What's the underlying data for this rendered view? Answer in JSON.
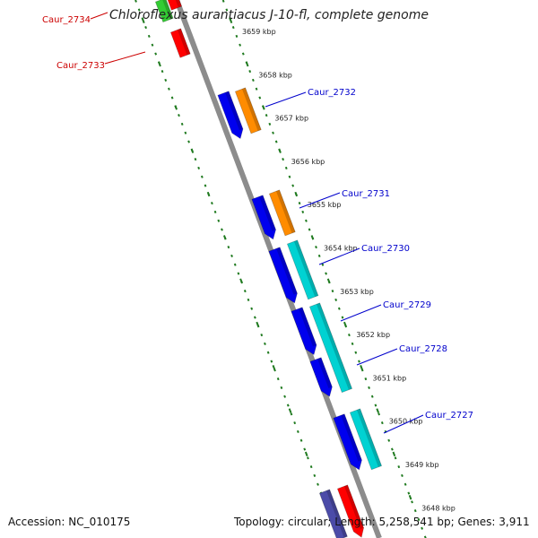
{
  "title": "Chloroflexus aurantiacus J-10-fl, complete genome",
  "footer": {
    "accession": "Accession: NC_010175",
    "topology": "Topology: circular; Length: 5,258,541 bp; Genes: 3,911"
  },
  "colors": {
    "backbone": "#8c8c8c",
    "ruler": "#1f7a1f",
    "label_blue": "#0000cc",
    "label_red": "#cc0000",
    "cds_blue": "#0000ee",
    "cds_orange": "#ff8c00",
    "cds_cyan": "#00d2d2",
    "cds_red": "#ff0000",
    "cds_green": "#33cc33",
    "cds_purple": "#4b4ba8"
  },
  "ticks": [
    {
      "label": "3659 kbp",
      "kbp": 3659
    },
    {
      "label": "3658 kbp",
      "kbp": 3658
    },
    {
      "label": "3657 kbp",
      "kbp": 3657
    },
    {
      "label": "3656 kbp",
      "kbp": 3656
    },
    {
      "label": "3655 kbp",
      "kbp": 3655
    },
    {
      "label": "3654 kbp",
      "kbp": 3654
    },
    {
      "label": "3653 kbp",
      "kbp": 3653
    },
    {
      "label": "3652 kbp",
      "kbp": 3652
    },
    {
      "label": "3651 kbp",
      "kbp": 3651
    },
    {
      "label": "3650 kbp",
      "kbp": 3650
    },
    {
      "label": "3649 kbp",
      "kbp": 3649
    },
    {
      "label": "3648 kbp",
      "kbp": 3648
    }
  ],
  "gene_labels": [
    {
      "name": "Caur_2734",
      "color": "label_red"
    },
    {
      "name": "Caur_2733",
      "color": "label_red"
    },
    {
      "name": "Caur_2732",
      "color": "label_blue"
    },
    {
      "name": "Caur_2731",
      "color": "label_blue"
    },
    {
      "name": "Caur_2730",
      "color": "label_blue"
    },
    {
      "name": "Caur_2729",
      "color": "label_blue"
    },
    {
      "name": "Caur_2728",
      "color": "label_blue"
    },
    {
      "name": "Caur_2727",
      "color": "label_blue"
    }
  ]
}
